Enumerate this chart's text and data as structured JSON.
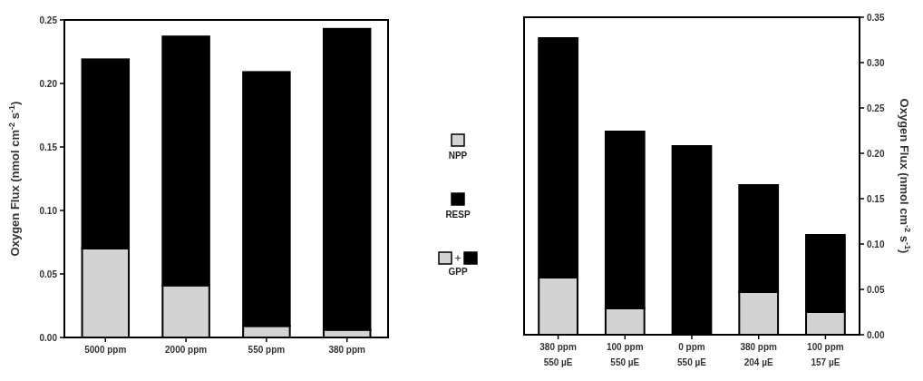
{
  "chart_data": [
    {
      "type": "bar",
      "stacked": true,
      "legend": "right",
      "ylabel": "Oxygen Flux (nmol cm$^{-2}$ s$^{-1}$)",
      "categories": [
        "5000 ppm",
        "2000 ppm",
        "550 ppm",
        "380 ppm"
      ],
      "series": [
        {
          "name": "NPP",
          "color": "#d3d3d3",
          "values": [
            0.07,
            0.041,
            0.009,
            0.006
          ]
        },
        {
          "name": "RESP",
          "color": "#000000",
          "values": [
            0.149,
            0.196,
            0.2,
            0.237
          ]
        }
      ],
      "annotations": [
        "GPP"
      ],
      "ylim": [
        0,
        0.25
      ],
      "yticks": [
        {
          "value": 0,
          "label": "0.00"
        },
        {
          "value": 0.05,
          "label": "0.05"
        },
        {
          "value": 0.1,
          "label": "0.10"
        },
        {
          "value": 0.15,
          "label": "0.15"
        },
        {
          "value": 0.2,
          "label": "0.20"
        },
        {
          "value": 0.25,
          "label": "0.25"
        }
      ]
    },
    {
      "type": "bar",
      "stacked": true,
      "y2label": "Oxygen Flux (nmol cm$^{-2}$ s$^{-1}$)",
      "categories": [
        "380 ppm\n550 µE",
        "100 ppm\n550 µE",
        "0 ppm\n550 µE",
        "380 ppm\n204 µE",
        "100 ppm\n157 µE"
      ],
      "series": [
        {
          "color": "#d3d3d3",
          "axis": "y2",
          "values": [
            0.063,
            0.029,
            0,
            0.047,
            0.025
          ]
        },
        {
          "color": "#000000",
          "axis": "y2",
          "values": [
            0.264,
            0.195,
            0.208,
            0.118,
            0.085
          ]
        }
      ],
      "y2lim": [
        0,
        0.35
      ],
      "y2ticks": [
        {
          "value": 0,
          "label": "0.00"
        },
        {
          "value": 0.05,
          "label": "0.05"
        },
        {
          "value": 0.1,
          "label": "0.10"
        },
        {
          "value": 0.15,
          "label": "0.15"
        },
        {
          "value": 0.2,
          "label": "0.20"
        },
        {
          "value": 0.25,
          "label": "0.25"
        },
        {
          "value": 0.3,
          "label": "0.30"
        },
        {
          "value": 0.35,
          "label": "0.35"
        }
      ]
    }
  ]
}
